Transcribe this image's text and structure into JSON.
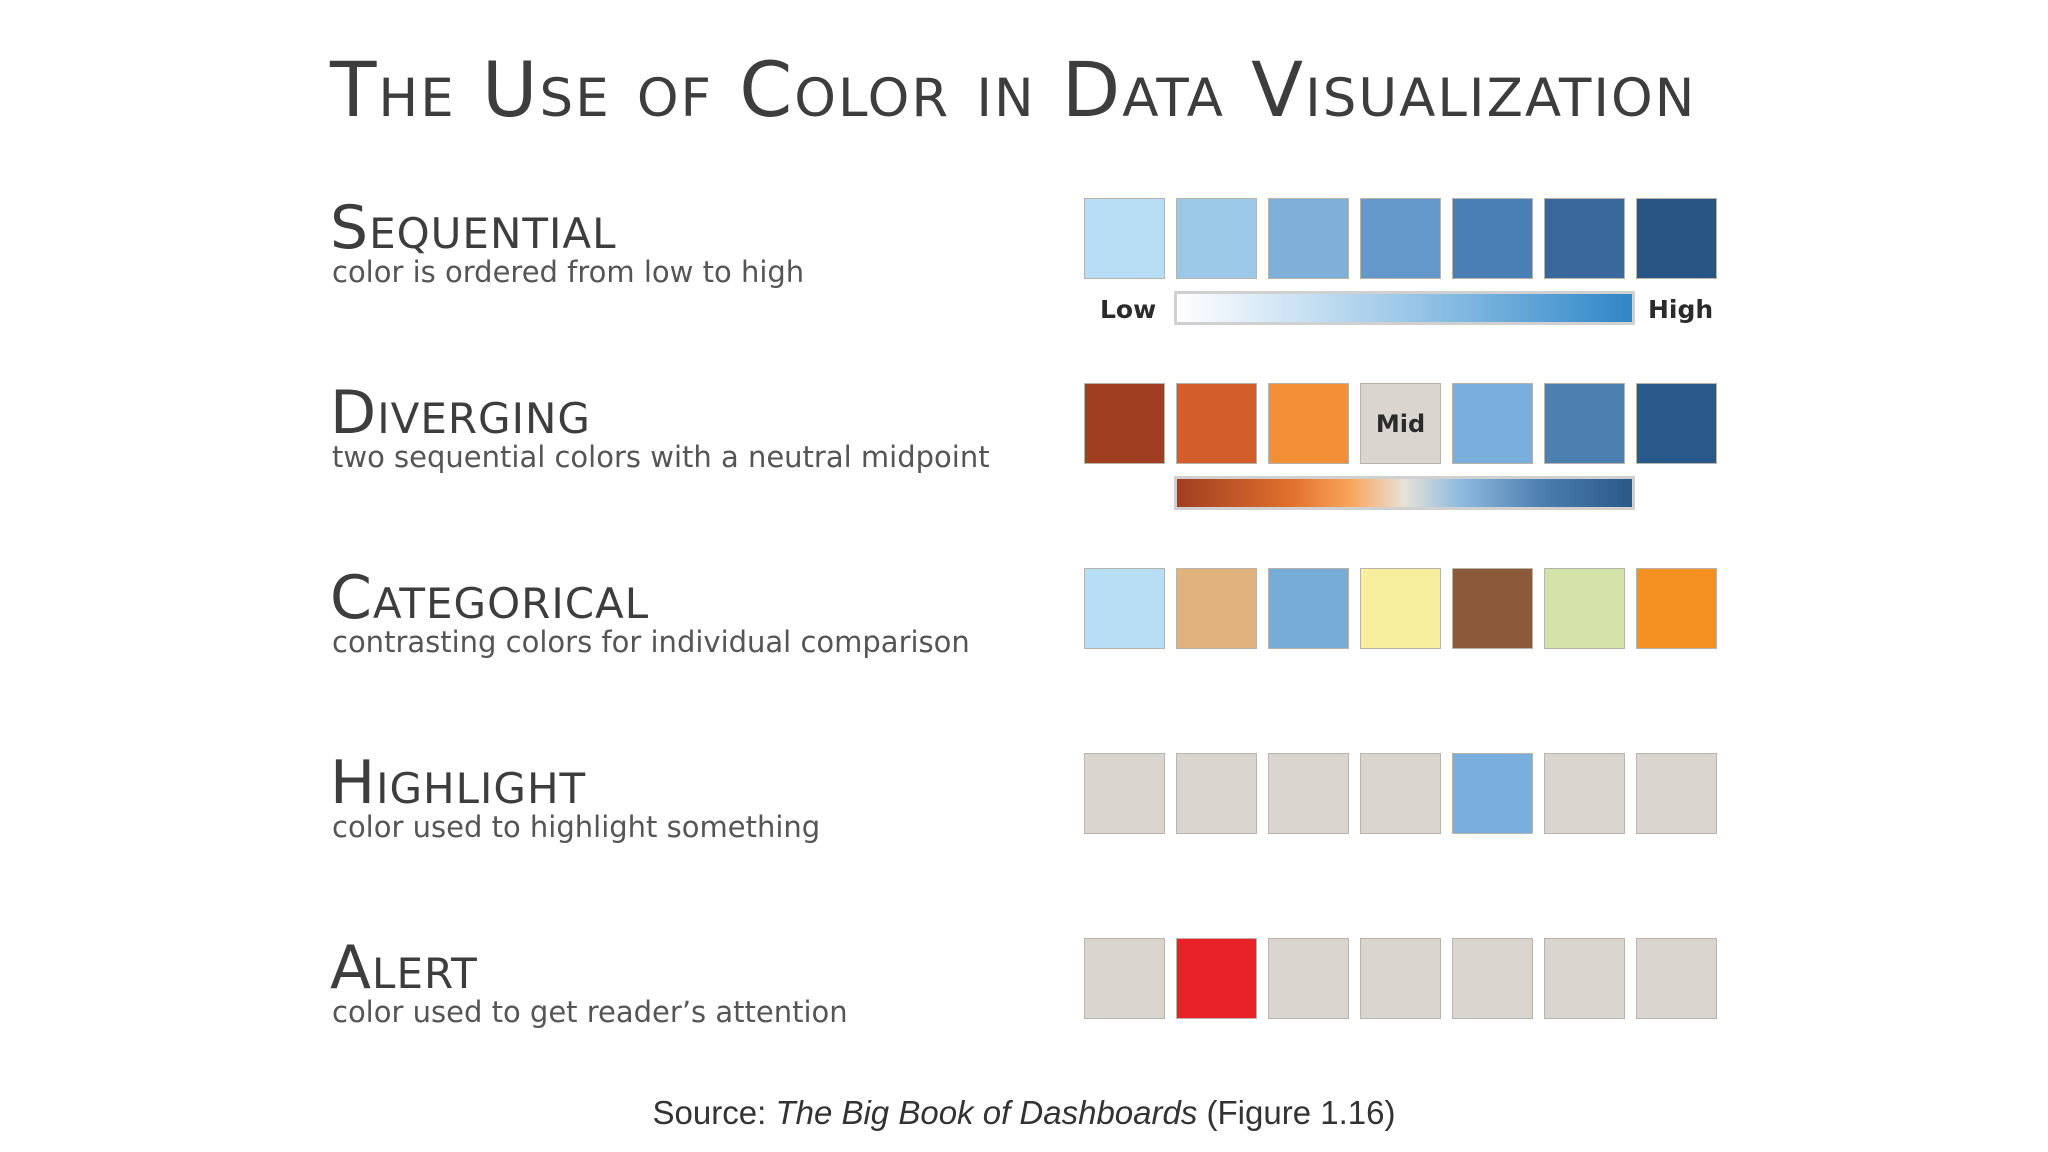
{
  "title": "The Use of Color in Data Visualization",
  "sections": [
    {
      "heading": "Sequential",
      "description": "color is ordered from low to high",
      "swatches": [
        "#b8def5",
        "#9cc8e8",
        "#7fb0d9",
        "#6598cb",
        "#4a7fb5",
        "#3b689c",
        "#295584"
      ],
      "scale": {
        "low": "Low",
        "high": "High"
      }
    },
    {
      "heading": "Diverging",
      "description": "two sequential colors with a neutral midpoint",
      "swatches": [
        "#a03e21",
        "#d35e2b",
        "#f38f36",
        "#dad6cf",
        "#7aaedc",
        "#4d7fb0",
        "#29598a"
      ],
      "mid_label": "Mid"
    },
    {
      "heading": "Categorical",
      "description": "contrasting colors for individual comparison",
      "swatches": [
        "#b8def5",
        "#e0b27e",
        "#77acd9",
        "#f8ef9e",
        "#8b5a3a",
        "#d3e2a9",
        "#f59121"
      ]
    },
    {
      "heading": "Highlight",
      "description": "color used to highlight something",
      "swatches": [
        "#dad6cf",
        "#dad6cf",
        "#dad6cf",
        "#dad6cf",
        "#7aaedc",
        "#dad6cf",
        "#dad6cf"
      ]
    },
    {
      "heading": "Alert",
      "description": "color used to get reader’s attention",
      "swatches": [
        "#dad6cf",
        "#e92129",
        "#dad6cf",
        "#dad6cf",
        "#dad6cf",
        "#dad6cf",
        "#dad6cf"
      ]
    }
  ],
  "source": {
    "prefix": "Source: ",
    "book": "The Big Book of Dashboards",
    "suffix": " (Figure 1.16)"
  }
}
